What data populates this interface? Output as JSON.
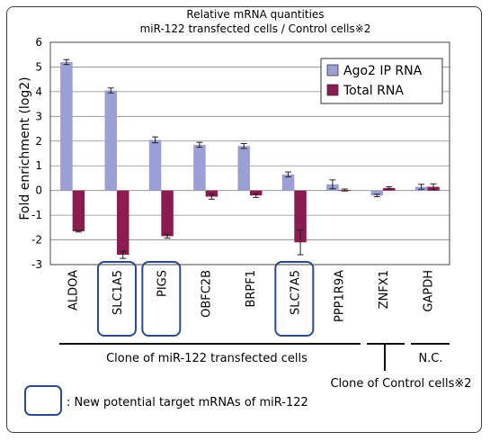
{
  "chart_data": {
    "type": "bar",
    "title_line1": "Relative mRNA quantities",
    "title_line2": "miR-122 transfected cells / Control cells※2",
    "ylabel": "Fold enrichment (log2)",
    "ylim": [
      -3,
      6
    ],
    "yticks": [
      "6",
      "5",
      "4",
      "3",
      "2",
      "1",
      "0",
      "-1",
      "-2",
      "-3"
    ],
    "grid": true,
    "legend_position": "top-right",
    "categories": [
      "ALDOA",
      "SLC1A5",
      "PIGS",
      "OBFC2B",
      "BRPF1",
      "SLC7A5",
      "PPP1R9A",
      "ZNFX1",
      "GAPDH"
    ],
    "highlighted": [
      "SLC1A5",
      "PIGS",
      "SLC7A5"
    ],
    "series": [
      {
        "name": "Ago2 IP RNA",
        "color": "#9b9fd6",
        "values": [
          5.2,
          4.05,
          2.05,
          1.85,
          1.8,
          0.65,
          0.25,
          -0.2,
          0.15
        ],
        "errors": [
          0.1,
          0.1,
          0.12,
          0.1,
          0.1,
          0.1,
          0.18,
          0.05,
          0.1
        ]
      },
      {
        "name": "Total RNA",
        "color": "#8b1c4f",
        "values": [
          -1.65,
          -2.6,
          -1.85,
          -0.25,
          -0.2,
          -2.1,
          0.02,
          0.1,
          0.15
        ],
        "errors": [
          0.03,
          0.15,
          0.08,
          0.1,
          0.08,
          0.5,
          0.04,
          0.05,
          0.12
        ]
      }
    ],
    "groups": [
      {
        "label": "Clone of miR-122 transfected cells"
      },
      {
        "label": "Clone of Control cells※2"
      },
      {
        "label": "N.C."
      }
    ],
    "box_legend": ": New potential target mRNAs of miR-122"
  }
}
